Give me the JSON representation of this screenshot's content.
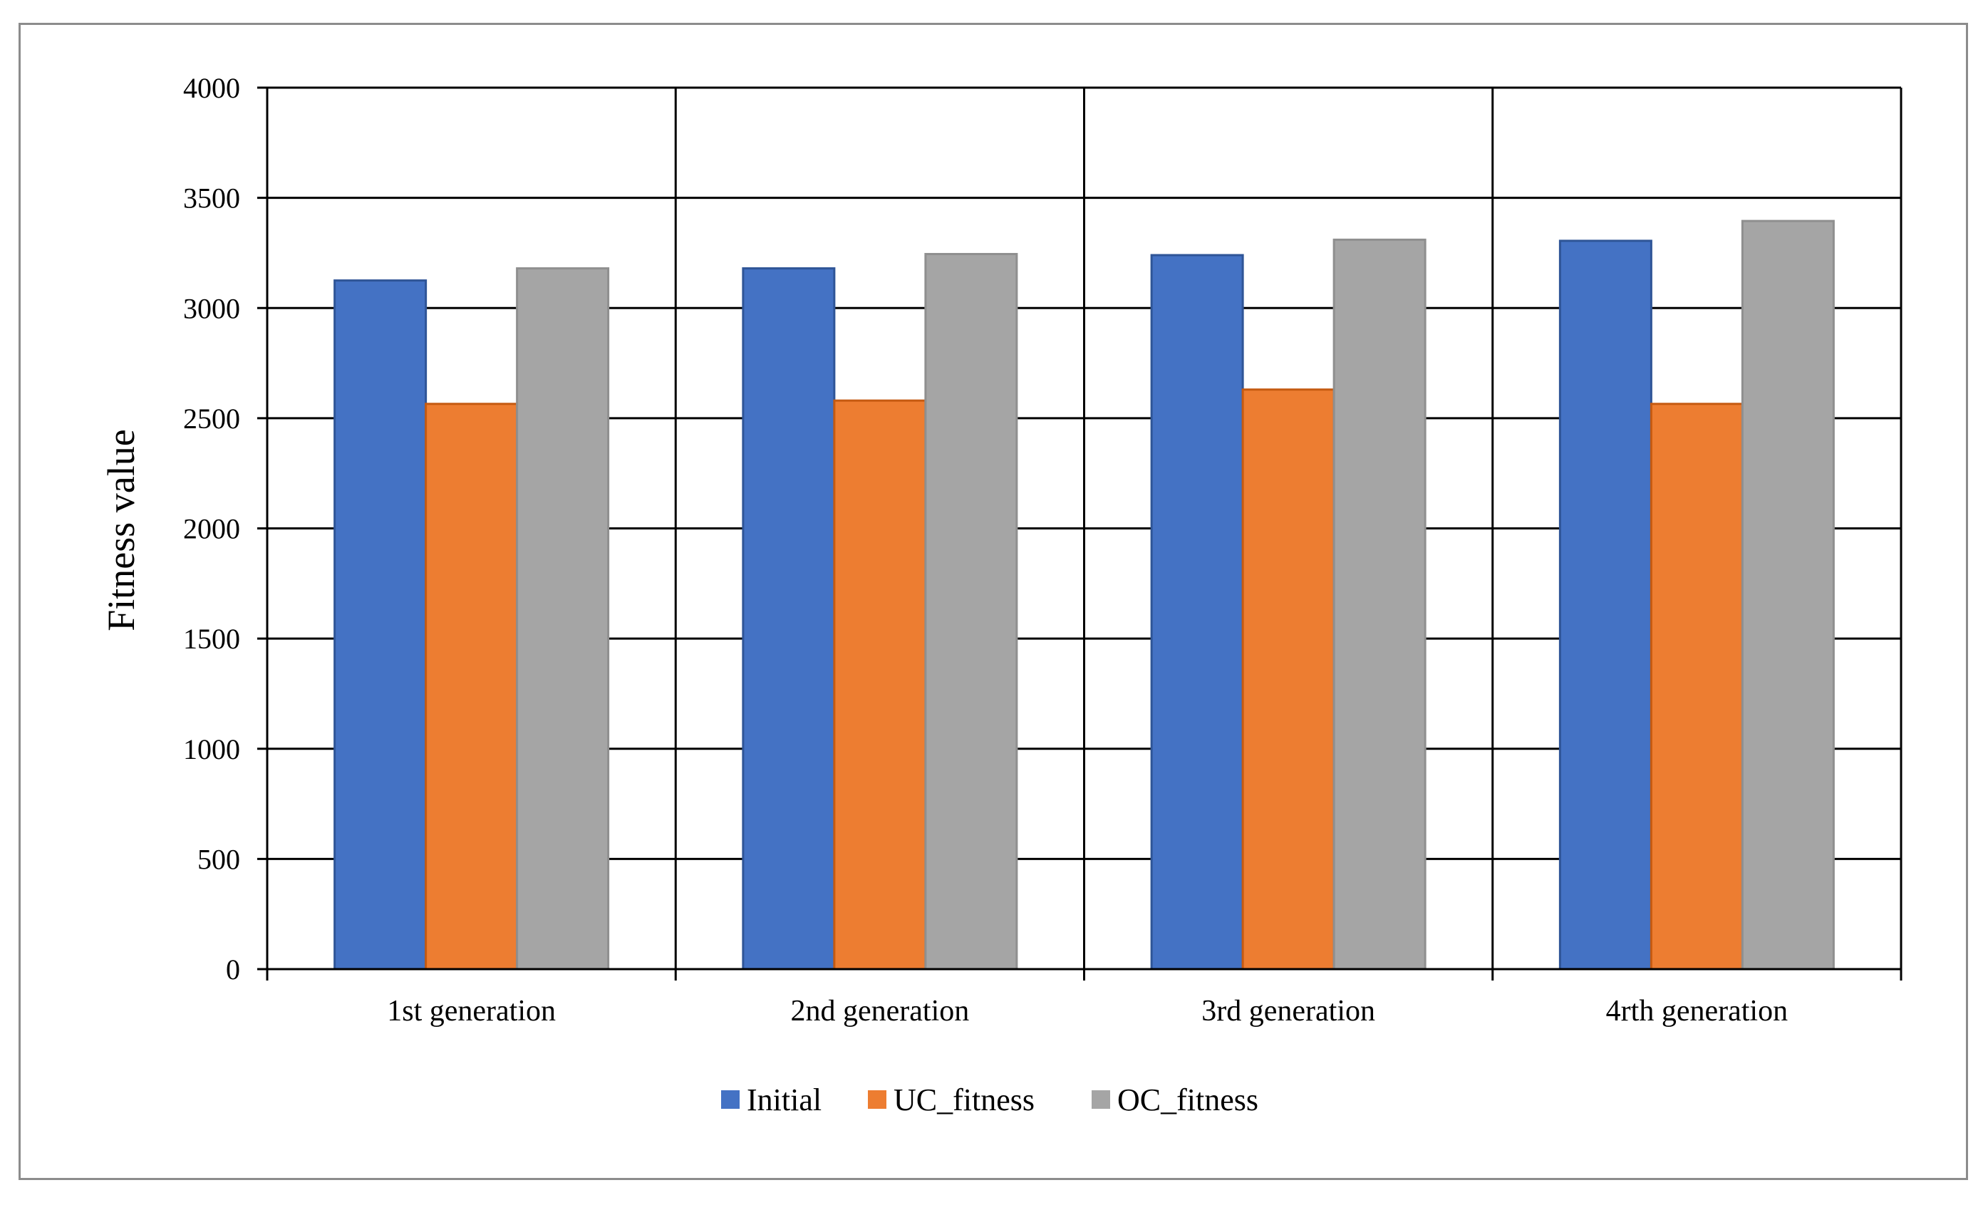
{
  "chart_data": {
    "type": "bar",
    "title": "",
    "xlabel": "",
    "ylabel": "Fitness value",
    "categories": [
      "1st   generation",
      "2nd generation",
      "3rd  generation",
      "4rth generation"
    ],
    "series": [
      {
        "name": "Initial",
        "color": "#4472c4",
        "values": [
          3125,
          3180,
          3240,
          3305
        ]
      },
      {
        "name": "UC_fitness",
        "color": "#ed7d31",
        "values": [
          2565,
          2580,
          2630,
          2565
        ]
      },
      {
        "name": "OC_fitness",
        "color": "#a5a5a5",
        "values": [
          3180,
          3245,
          3310,
          3395
        ]
      }
    ],
    "ylim": [
      0,
      4000
    ],
    "yticks": [
      0,
      500,
      1000,
      1500,
      2000,
      2500,
      3000,
      3500,
      4000
    ],
    "grid": true,
    "legend_position": "bottom"
  }
}
